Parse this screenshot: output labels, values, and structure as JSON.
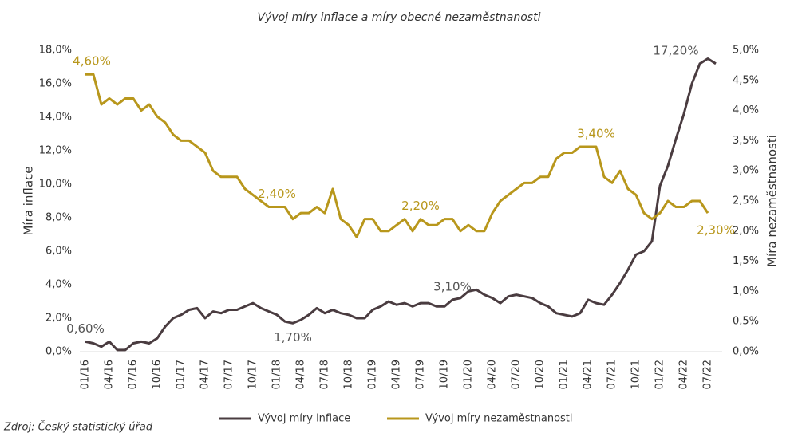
{
  "chart_data": {
    "type": "line",
    "title": "Vývoj míry inflace a míry obecné nezaměstnanosti",
    "y_label": "Míra inflace",
    "y2_label": "Míra nezaměstnanosti",
    "source": "Zdroj: Český statistický úřad",
    "categories": [
      "01/16",
      null,
      null,
      "04/16",
      null,
      null,
      "07/16",
      null,
      null,
      "10/16",
      null,
      null,
      "01/17",
      null,
      null,
      "04/17",
      null,
      null,
      "07/17",
      null,
      null,
      "10/17",
      null,
      null,
      "01/18",
      null,
      null,
      "04/18",
      null,
      null,
      "07/18",
      null,
      null,
      "10/18",
      null,
      null,
      "01/19",
      null,
      null,
      "04/19",
      null,
      null,
      "07/19",
      null,
      null,
      "10/19",
      null,
      null,
      "01/20",
      null,
      null,
      "04/20",
      null,
      null,
      "07/20",
      null,
      null,
      "10/20",
      null,
      null,
      "01/21",
      null,
      null,
      "04/21",
      null,
      null,
      "07/21",
      null,
      null,
      "10/21",
      null,
      null,
      "01/22",
      null,
      null,
      "04/22",
      null,
      null,
      "07/22",
      null
    ],
    "series": [
      {
        "name": "Vývoj míry inflace",
        "color": "#4a3c40",
        "values": [
          0.6,
          0.5,
          0.3,
          0.6,
          0.1,
          0.1,
          0.5,
          0.6,
          0.5,
          0.8,
          1.5,
          2.0,
          2.2,
          2.5,
          2.6,
          2.0,
          2.4,
          2.3,
          2.5,
          2.5,
          2.7,
          2.9,
          2.6,
          2.4,
          2.2,
          1.8,
          1.7,
          1.9,
          2.2,
          2.6,
          2.3,
          2.5,
          2.3,
          2.2,
          2.0,
          2.0,
          2.5,
          2.7,
          3.0,
          2.8,
          2.9,
          2.7,
          2.9,
          2.9,
          2.7,
          2.7,
          3.1,
          3.2,
          3.6,
          3.7,
          3.4,
          3.2,
          2.9,
          3.3,
          3.4,
          3.3,
          3.2,
          2.9,
          2.7,
          2.3,
          2.2,
          2.1,
          2.3,
          3.1,
          2.9,
          2.8,
          3.4,
          4.1,
          4.9,
          5.8,
          6.0,
          6.6,
          9.9,
          11.1,
          12.7,
          14.2,
          16.0,
          17.2,
          17.5,
          17.2
        ],
        "value_labels": [
          "0,60%",
          null,
          null,
          null,
          null,
          null,
          null,
          null,
          null,
          null,
          null,
          null,
          null,
          null,
          null,
          null,
          null,
          null,
          null,
          null,
          null,
          null,
          null,
          null,
          null,
          null,
          "1,70%",
          null,
          null,
          null,
          null,
          null,
          null,
          null,
          null,
          null,
          null,
          null,
          null,
          null,
          null,
          null,
          null,
          null,
          null,
          null,
          "3,10%",
          null,
          null,
          null,
          null,
          null,
          null,
          null,
          null,
          null,
          null,
          null,
          null,
          null,
          null,
          null,
          null,
          null,
          null,
          null,
          null,
          null,
          null,
          null,
          null,
          null,
          null,
          null,
          null,
          null,
          null,
          "17,20%",
          null,
          null
        ]
      },
      {
        "name": "Vývoj míry nezaměstnanosti",
        "color": "#b8971c",
        "axis": "y2",
        "values": [
          4.6,
          4.6,
          4.1,
          4.2,
          4.1,
          4.2,
          4.2,
          4.0,
          4.1,
          3.9,
          3.8,
          3.6,
          3.5,
          3.5,
          3.4,
          3.3,
          3.0,
          2.9,
          2.9,
          2.9,
          2.7,
          2.6,
          2.5,
          2.4,
          2.4,
          2.4,
          2.2,
          2.3,
          2.3,
          2.4,
          2.3,
          2.7,
          2.2,
          2.1,
          1.9,
          2.2,
          2.2,
          2.0,
          2.0,
          2.1,
          2.2,
          2.0,
          2.2,
          2.1,
          2.1,
          2.2,
          2.2,
          2.0,
          2.1,
          2.0,
          2.0,
          2.3,
          2.5,
          2.6,
          2.7,
          2.8,
          2.8,
          2.9,
          2.9,
          3.2,
          3.3,
          3.3,
          3.4,
          3.4,
          3.4,
          2.9,
          2.8,
          3.0,
          2.7,
          2.6,
          2.3,
          2.2,
          2.3,
          2.5,
          2.4,
          2.4,
          2.5,
          2.5,
          2.3,
          null
        ],
        "value_labels": [
          "4,60%",
          null,
          null,
          null,
          null,
          null,
          null,
          null,
          null,
          null,
          null,
          null,
          null,
          null,
          null,
          null,
          null,
          null,
          null,
          null,
          null,
          null,
          null,
          null,
          "2,40%",
          null,
          null,
          null,
          null,
          null,
          null,
          null,
          null,
          null,
          null,
          null,
          null,
          null,
          null,
          null,
          null,
          null,
          "2,20%",
          null,
          null,
          null,
          null,
          null,
          null,
          null,
          null,
          null,
          null,
          null,
          null,
          null,
          null,
          null,
          null,
          null,
          null,
          null,
          null,
          null,
          "3,40%",
          null,
          null,
          null,
          null,
          null,
          null,
          null,
          null,
          null,
          null,
          null,
          null,
          null,
          "2,30%",
          null
        ]
      }
    ],
    "ylim": [
      0,
      18
    ],
    "yticks": [
      {
        "value": 0,
        "label": "0,0%"
      },
      {
        "value": 2,
        "label": "2,0%"
      },
      {
        "value": 4,
        "label": "4,0%"
      },
      {
        "value": 6,
        "label": "6,0%"
      },
      {
        "value": 8,
        "label": "8,0%"
      },
      {
        "value": 10,
        "label": "10,0%"
      },
      {
        "value": 12,
        "label": "12,0%"
      },
      {
        "value": 14,
        "label": "14,0%"
      },
      {
        "value": 16,
        "label": "16,0%"
      },
      {
        "value": 18,
        "label": "18,0%"
      }
    ],
    "y2lim": [
      0,
      5
    ],
    "y2ticks": [
      {
        "value": 0,
        "label": "0,0%"
      },
      {
        "value": 0.5,
        "label": "0,5%"
      },
      {
        "value": 1,
        "label": "1,0%"
      },
      {
        "value": 1.5,
        "label": "1,5%"
      },
      {
        "value": 2,
        "label": "2,0%"
      },
      {
        "value": 2.5,
        "label": "2,5%"
      },
      {
        "value": 3,
        "label": "3,0%"
      },
      {
        "value": 3.5,
        "label": "3,5%"
      },
      {
        "value": 4,
        "label": "4,0%"
      },
      {
        "value": 4.5,
        "label": "4,5%"
      },
      {
        "value": 5,
        "label": "5,0%"
      }
    ],
    "grid": false,
    "legend": "bottom"
  }
}
